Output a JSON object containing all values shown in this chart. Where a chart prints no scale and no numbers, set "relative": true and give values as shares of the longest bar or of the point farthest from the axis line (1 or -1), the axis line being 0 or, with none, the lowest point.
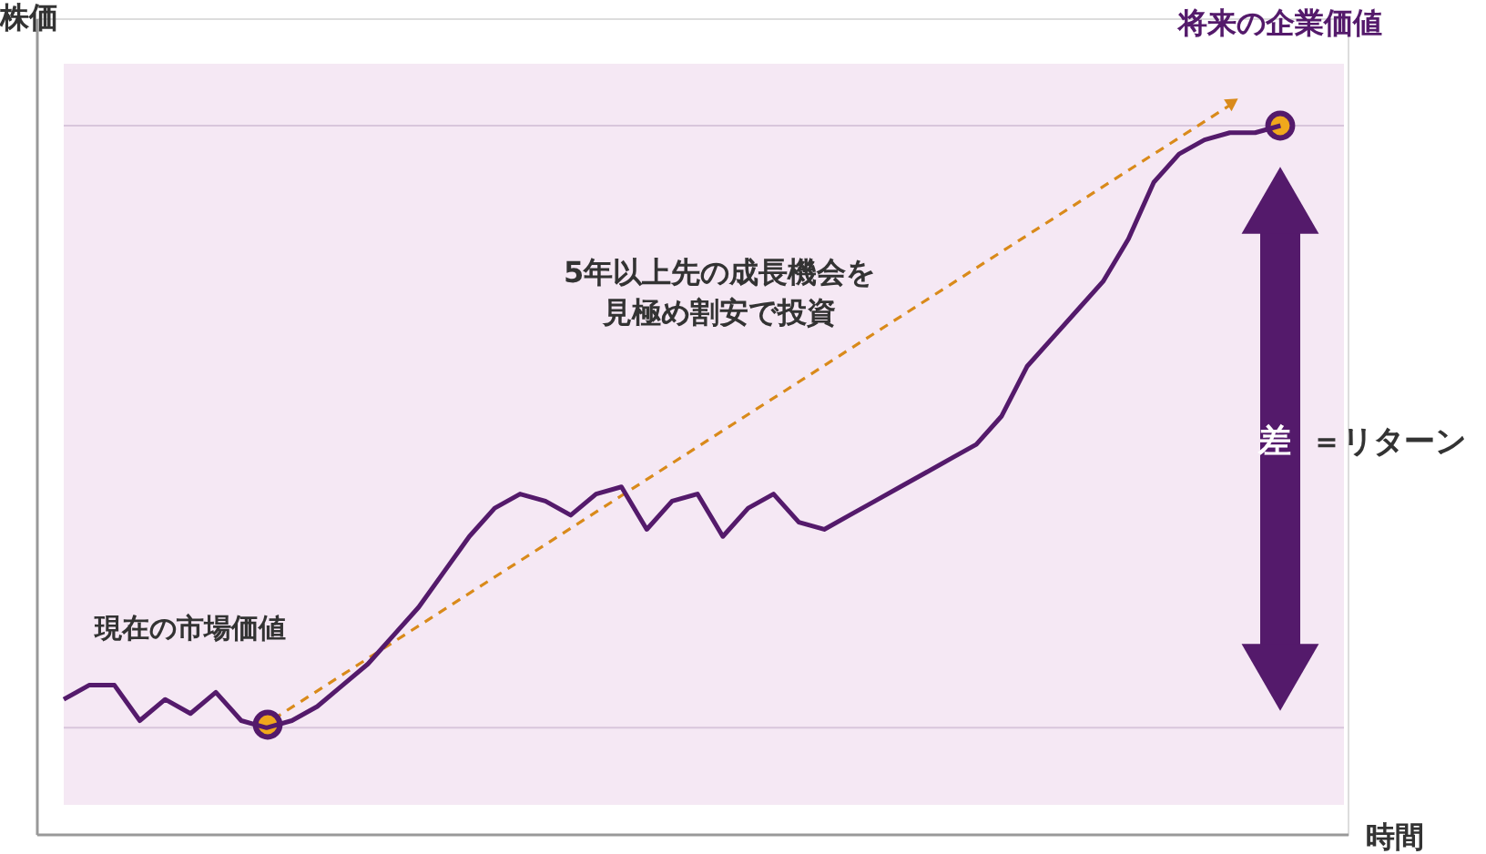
{
  "chart_data": {
    "type": "line",
    "relative": true,
    "xlabel": "時間",
    "ylabel": "株価",
    "grid": false,
    "categories": [
      null,
      null,
      null,
      null,
      null,
      null,
      null,
      null,
      null,
      null,
      null,
      null,
      null,
      null,
      null,
      null,
      null,
      null,
      null,
      null,
      null,
      null,
      null,
      null,
      null,
      null,
      null,
      null,
      null,
      null,
      null,
      null,
      null,
      null,
      null,
      null,
      null,
      null,
      null,
      null,
      null,
      null,
      null,
      null,
      null,
      null,
      null,
      null,
      null
    ],
    "series": [
      {
        "color": "#541a6b",
        "values": [
          0.19,
          0.21,
          0.21,
          0.16,
          0.19,
          0.17,
          0.2,
          0.16,
          0.15,
          0.16,
          0.18,
          0.21,
          0.24,
          0.28,
          0.32,
          0.37,
          0.42,
          0.46,
          0.48,
          0.47,
          0.45,
          0.48,
          0.49,
          0.43,
          0.47,
          0.48,
          0.42,
          0.46,
          0.48,
          0.44,
          0.43,
          0.45,
          0.47,
          0.49,
          0.51,
          0.53,
          0.55,
          0.59,
          0.66,
          0.7,
          0.74,
          0.78,
          0.84,
          0.92,
          0.96,
          0.98,
          0.99,
          0.99,
          1.0
        ]
      }
    ],
    "ref_lines": [
      {
        "axis": "y",
        "value": 0.15,
        "color": "#d8c6dc"
      },
      {
        "axis": "y",
        "value": 1.0,
        "color": "#d8c6dc"
      }
    ],
    "annotations": [
      "現在の市場価値",
      "5年以上先の成長機会を見極め割安で投資",
      "将来の企業価値",
      "差",
      "＝リターン"
    ]
  }
}
